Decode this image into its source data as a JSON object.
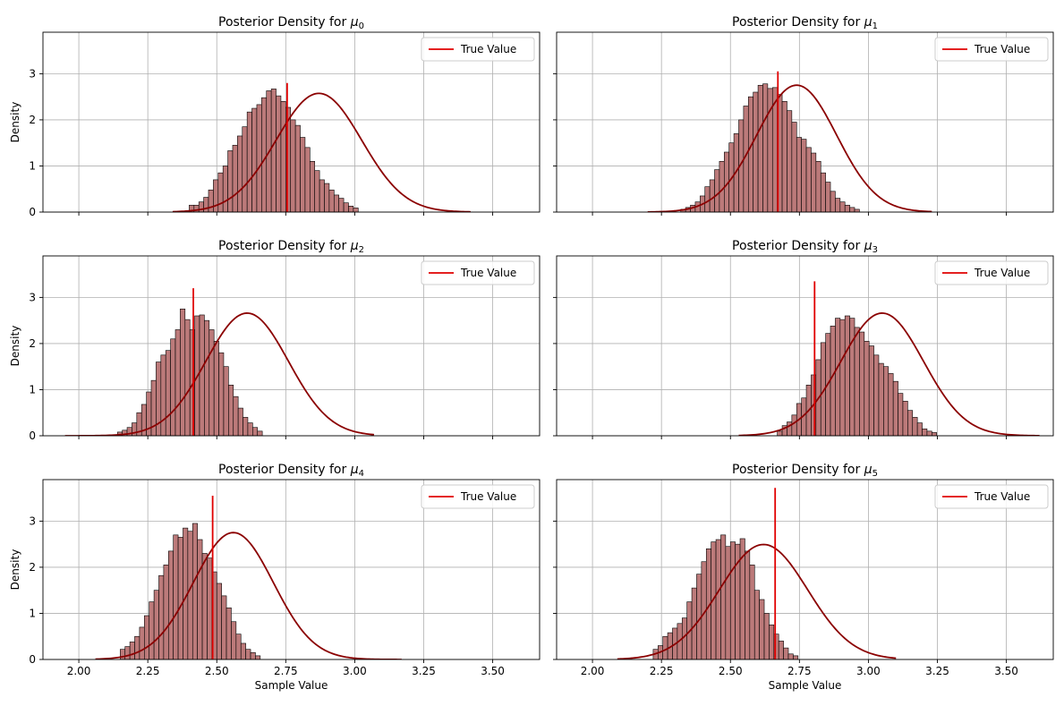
{
  "colors": {
    "bar_fill": "#bc7a7a",
    "bar_edge": "#000000",
    "kde_line": "#8b0000",
    "true_value_line": "#e00000",
    "grid": "#b0b0b0"
  },
  "chart_data": {
    "type": "bar",
    "shared_x": true,
    "shared_y": true,
    "xlim": [
      1.87,
      3.67
    ],
    "ylim": [
      0,
      3.9
    ],
    "xticks": [
      2.0,
      2.25,
      2.5,
      2.75,
      3.0,
      3.25,
      3.5
    ],
    "xtick_labels": [
      "2.00",
      "2.25",
      "2.50",
      "2.75",
      "3.00",
      "3.25",
      "3.50"
    ],
    "yticks": [
      0,
      1,
      2,
      3
    ],
    "ytick_labels": [
      "0",
      "1",
      "2",
      "3"
    ],
    "xlabel": "Sample Value",
    "ylabel": "Density",
    "grid": true,
    "legend_position": "top-right",
    "legend_label": "True Value",
    "panels": [
      {
        "title_prefix": "Posterior Density for ",
        "mu": "μ",
        "sub": "0",
        "true_value": 2.755,
        "true_line_height": 2.8,
        "kde": {
          "mean": 2.87,
          "sd": 0.155,
          "xmin": 2.34,
          "xmax": 3.42
        },
        "hist": {
          "start": 2.4,
          "width": 0.0175,
          "densities": [
            0.15,
            0.15,
            0.22,
            0.32,
            0.48,
            0.7,
            0.85,
            1.0,
            1.33,
            1.45,
            1.65,
            1.85,
            2.17,
            2.25,
            2.33,
            2.48,
            2.63,
            2.67,
            2.52,
            2.4,
            2.27,
            2.0,
            1.88,
            1.62,
            1.4,
            1.1,
            0.9,
            0.7,
            0.62,
            0.48,
            0.37,
            0.3,
            0.2,
            0.13,
            0.09
          ]
        }
      },
      {
        "title_prefix": "Posterior Density for ",
        "mu": "μ",
        "sub": "1",
        "true_value": 2.672,
        "true_line_height": 3.05,
        "kde": {
          "mean": 2.74,
          "sd": 0.145,
          "xmin": 2.2,
          "xmax": 3.23
        },
        "hist": {
          "start": 2.32,
          "width": 0.0175,
          "densities": [
            0.06,
            0.1,
            0.15,
            0.22,
            0.35,
            0.55,
            0.7,
            0.92,
            1.1,
            1.3,
            1.5,
            1.7,
            2.0,
            2.3,
            2.5,
            2.6,
            2.75,
            2.78,
            2.68,
            2.7,
            2.55,
            2.4,
            2.2,
            1.95,
            1.62,
            1.58,
            1.4,
            1.28,
            1.1,
            0.85,
            0.65,
            0.45,
            0.3,
            0.22,
            0.15,
            0.1,
            0.06
          ]
        }
      },
      {
        "title_prefix": "Posterior Density for ",
        "mu": "μ",
        "sub": "2",
        "true_value": 2.415,
        "true_line_height": 3.2,
        "kde": {
          "mean": 2.61,
          "sd": 0.15,
          "xmin": 1.95,
          "xmax": 3.07
        },
        "hist": {
          "start": 2.14,
          "width": 0.0175,
          "densities": [
            0.08,
            0.12,
            0.18,
            0.28,
            0.5,
            0.68,
            0.95,
            1.2,
            1.6,
            1.75,
            1.85,
            2.1,
            2.3,
            2.75,
            2.52,
            2.3,
            2.6,
            2.62,
            2.5,
            2.3,
            2.05,
            1.8,
            1.5,
            1.1,
            0.85,
            0.6,
            0.4,
            0.28,
            0.18,
            0.1
          ]
        }
      },
      {
        "title_prefix": "Posterior Density for ",
        "mu": "μ",
        "sub": "3",
        "true_value": 2.805,
        "true_line_height": 3.35,
        "kde": {
          "mean": 3.05,
          "sd": 0.15,
          "xmin": 2.53,
          "xmax": 3.62
        },
        "hist": {
          "start": 2.67,
          "width": 0.0175,
          "densities": [
            0.1,
            0.22,
            0.3,
            0.45,
            0.7,
            0.82,
            1.1,
            1.32,
            1.65,
            2.02,
            2.22,
            2.38,
            2.55,
            2.52,
            2.6,
            2.55,
            2.35,
            2.25,
            2.05,
            1.95,
            1.75,
            1.57,
            1.5,
            1.35,
            1.18,
            0.92,
            0.75,
            0.55,
            0.4,
            0.28,
            0.15,
            0.1,
            0.07
          ]
        }
      },
      {
        "title_prefix": "Posterior Density for ",
        "mu": "μ",
        "sub": "4",
        "true_value": 2.485,
        "true_line_height": 3.55,
        "kde": {
          "mean": 2.56,
          "sd": 0.145,
          "xmin": 2.06,
          "xmax": 3.17
        },
        "hist": {
          "start": 2.15,
          "width": 0.0175,
          "densities": [
            0.22,
            0.28,
            0.38,
            0.5,
            0.7,
            0.95,
            1.25,
            1.5,
            1.82,
            2.05,
            2.35,
            2.7,
            2.65,
            2.85,
            2.78,
            2.95,
            2.6,
            2.3,
            2.2,
            1.9,
            1.65,
            1.38,
            1.12,
            0.82,
            0.55,
            0.35,
            0.22,
            0.15,
            0.08
          ]
        }
      },
      {
        "title_prefix": "Posterior Density for ",
        "mu": "μ",
        "sub": "5",
        "true_value": 2.662,
        "true_line_height": 3.72,
        "kde": {
          "mean": 2.62,
          "sd": 0.16,
          "xmin": 2.09,
          "xmax": 3.1
        },
        "hist": {
          "start": 2.22,
          "width": 0.0175,
          "densities": [
            0.22,
            0.3,
            0.5,
            0.58,
            0.68,
            0.78,
            0.9,
            1.25,
            1.55,
            1.85,
            2.12,
            2.4,
            2.55,
            2.6,
            2.7,
            2.45,
            2.55,
            2.5,
            2.62,
            2.35,
            2.05,
            1.5,
            1.3,
            1.0,
            0.75,
            0.55,
            0.4,
            0.25,
            0.12,
            0.08
          ]
        }
      }
    ]
  }
}
